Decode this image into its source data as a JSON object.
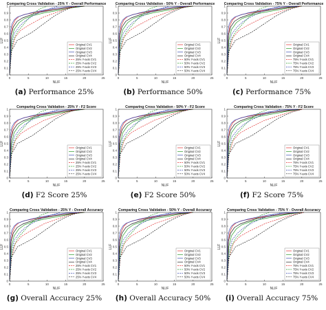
{
  "figure": {
    "panels": [
      {
        "id": "a",
        "caption_letter": "(a)",
        "caption_text": "Performance 25%",
        "title": "Comparing Cross Validation - 25% Y - Overall Performance",
        "pct": "25%"
      },
      {
        "id": "b",
        "caption_letter": "(b)",
        "caption_text": "Performance 50%",
        "title": "Comparing Cross Validation - 50% Y - Overall Performance",
        "pct": "50%"
      },
      {
        "id": "c",
        "caption_letter": "(c)",
        "caption_text": "Performance 75%",
        "title": "Comparing Cross Validation - 75% Y - Overall Performance",
        "pct": "75%"
      },
      {
        "id": "d",
        "caption_letter": "(d)",
        "caption_text": "F2 Score 25%",
        "title": "Comparing Cross Validation - 25% Y - F2 Score",
        "pct": "25%"
      },
      {
        "id": "e",
        "caption_letter": "(e)",
        "caption_text": "F2 Score 50%",
        "title": "Comparing Cross Validation - 50% Y - F2 Score",
        "pct": "50%"
      },
      {
        "id": "f",
        "caption_letter": "(f)",
        "caption_text": "F2 Score 75%",
        "title": "Comparing Cross Validation - 75% Y - F2 Score",
        "pct": "75%"
      },
      {
        "id": "g",
        "caption_letter": "(g)",
        "caption_text": "Overall Accuracy 25%",
        "title": "Comparing Cross Validation - 25% Y - Overall Accuracy",
        "pct": "25%"
      },
      {
        "id": "h",
        "caption_letter": "(h)",
        "caption_text": "Overall Accuracy 50%",
        "title": "Comparing Cross Validation - 50% Y - Overall Accuracy",
        "pct": "50%"
      },
      {
        "id": "i",
        "caption_letter": "(i)",
        "caption_text": "Overall Accuracy 75%",
        "title": "Comparing Cross Validation - 75% Y - Overall Accuracy",
        "pct": "75%"
      }
    ],
    "colors": {
      "cv1": "#e03030",
      "cv2": "#2a9a2a",
      "cv3": "#3a4ab0",
      "cv4": "#222222",
      "axis": "#333333"
    }
  },
  "chart_data": {
    "type": "line",
    "xlabel": "NLIF",
    "ylabel": "LLF",
    "xlim": [
      0,
      25
    ],
    "ylim": [
      0,
      1
    ],
    "xticks": [
      0,
      5,
      10,
      15,
      20,
      25
    ],
    "yticks": [
      0,
      0.1,
      0.2,
      0.3,
      0.4,
      0.5,
      0.6,
      0.7,
      0.8,
      0.9,
      1
    ],
    "legend_position": "bottom-right",
    "series": [
      {
        "name": "Original CV1",
        "style": "solid",
        "color_key": "cv1",
        "x": [
          0,
          0.3,
          0.8,
          1.5,
          2.5,
          4,
          6,
          9,
          13,
          17,
          20
        ],
        "y": [
          0,
          0.55,
          0.72,
          0.8,
          0.85,
          0.88,
          0.9,
          0.93,
          0.96,
          0.99,
          1.0
        ]
      },
      {
        "name": "Original CV2",
        "style": "solid",
        "color_key": "cv2",
        "x": [
          0,
          0.5,
          1.2,
          2.5,
          4,
          6,
          9,
          13,
          17,
          20
        ],
        "y": [
          0,
          0.5,
          0.66,
          0.76,
          0.82,
          0.86,
          0.9,
          0.94,
          0.98,
          1.0
        ]
      },
      {
        "name": "Original CV3",
        "style": "solid",
        "color_key": "cv3",
        "x": [
          0,
          0.2,
          0.6,
          1.2,
          2,
          3.5,
          5.5,
          8,
          11,
          15,
          19
        ],
        "y": [
          0,
          0.62,
          0.74,
          0.8,
          0.84,
          0.87,
          0.9,
          0.93,
          0.96,
          0.99,
          1.0
        ]
      },
      {
        "name": "Original CV4",
        "style": "solid",
        "color_key": "cv4",
        "x": [
          0,
          0.4,
          1,
          2,
          3.5,
          5.5,
          8,
          12,
          16,
          20
        ],
        "y": [
          0,
          0.58,
          0.7,
          0.78,
          0.83,
          0.87,
          0.91,
          0.95,
          0.98,
          1.0
        ]
      },
      {
        "name": "CV1",
        "style": "dashed",
        "color_key": "cv1",
        "x": [
          0,
          0.5,
          1.5,
          3,
          5,
          7,
          9,
          12,
          15,
          18
        ],
        "y": [
          0,
          0.35,
          0.55,
          0.65,
          0.72,
          0.78,
          0.84,
          0.9,
          0.96,
          1.0
        ]
      },
      {
        "name": "CV2",
        "style": "dashed",
        "color_key": "cv2",
        "x": [
          0,
          0.3,
          1,
          2,
          3.5,
          5,
          6.5,
          8,
          10
        ],
        "y": [
          0,
          0.3,
          0.5,
          0.62,
          0.72,
          0.82,
          0.9,
          0.96,
          1.0
        ]
      },
      {
        "name": "CV3",
        "style": "dashed",
        "color_key": "cv3",
        "x": [
          0,
          0.4,
          1.2,
          2.5,
          4,
          6,
          8,
          10.5,
          13
        ],
        "y": [
          0,
          0.4,
          0.6,
          0.7,
          0.78,
          0.85,
          0.91,
          0.96,
          1.0
        ]
      },
      {
        "name": "CV4",
        "style": "dashed",
        "color_key": "cv4",
        "x": [
          0,
          0.5,
          2,
          4,
          6,
          8,
          10,
          12,
          14,
          16,
          18
        ],
        "y": [
          0,
          0.35,
          0.5,
          0.56,
          0.62,
          0.7,
          0.78,
          0.86,
          0.92,
          0.97,
          1.0
        ]
      }
    ]
  }
}
